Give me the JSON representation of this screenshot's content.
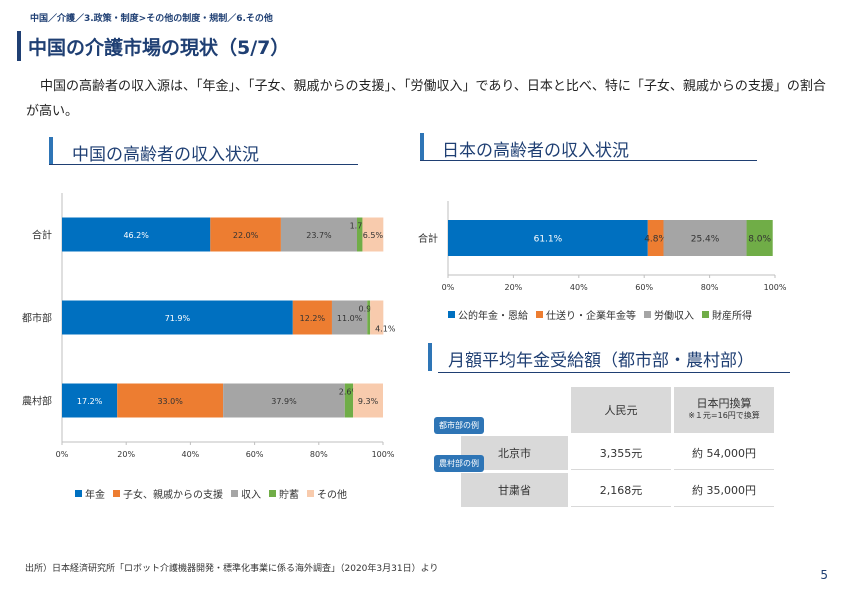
{
  "breadcrumb": "中国／介護／3.政策・制度>その他の制度・規制／6.その他",
  "page_title": "中国の介護市場の現状（5/7）",
  "lead_text": "中国の高齢者の収入源は、「年金」、「子女、親戚からの支援」、「労働収入」であり、日本と比べ、特に「子女、親戚からの支援」の割合が高い。",
  "china_section_title": "中国の高齢者の収入状況",
  "japan_section_title": "日本の高齢者の収入状況",
  "pension_section_title": "月額平均年金受給額（都市部・農村部）",
  "chart_data": [
    {
      "type": "bar",
      "orientation": "horizontal-stacked",
      "categories": [
        "合計",
        "都市部",
        "農村部"
      ],
      "series": [
        {
          "name": "年金",
          "values": [
            46.2,
            71.9,
            17.2
          ],
          "labels": [
            "46.2%",
            "71.9%",
            "17.2%"
          ]
        },
        {
          "name": "子女、親戚からの支援",
          "values": [
            22.0,
            12.2,
            33.0
          ],
          "labels": [
            "22.0%",
            "12.2%",
            "33.0%"
          ]
        },
        {
          "name": "収入",
          "values": [
            23.7,
            11.0,
            37.9
          ],
          "labels": [
            "23.7%",
            "11.0%",
            "37.9%"
          ]
        },
        {
          "name": "貯蓄",
          "values": [
            1.7,
            0.9,
            2.6
          ],
          "labels": [
            "1.7%",
            "0.9%",
            "2.6%"
          ]
        },
        {
          "name": "その他",
          "values": [
            6.5,
            4.1,
            9.3
          ],
          "labels": [
            "6.5%",
            "4.1%",
            "9.3%"
          ]
        }
      ],
      "colors": [
        "#0070c0",
        "#ed7d31",
        "#a5a5a5",
        "#70ad47",
        "#f8cbad"
      ],
      "xlim": [
        0,
        100
      ],
      "xticks": [
        "0%",
        "20%",
        "40%",
        "60%",
        "80%",
        "100%"
      ],
      "legend": "bottom",
      "grid": false
    },
    {
      "type": "bar",
      "orientation": "horizontal-stacked",
      "categories": [
        "合計"
      ],
      "series": [
        {
          "name": "公的年金・恩給",
          "values": [
            61.1
          ],
          "labels": [
            "61.1%"
          ]
        },
        {
          "name": "仕送り・企業年金等",
          "values": [
            4.8
          ],
          "labels": [
            "4.8%"
          ]
        },
        {
          "name": "労働収入",
          "values": [
            25.4
          ],
          "labels": [
            "25.4%"
          ]
        },
        {
          "name": "財産所得",
          "values": [
            8.0
          ],
          "labels": [
            "8.0%"
          ]
        }
      ],
      "colors": [
        "#0070c0",
        "#ed7d31",
        "#a5a5a5",
        "#70ad47"
      ],
      "xlim": [
        0,
        100
      ],
      "xticks": [
        "0%",
        "20%",
        "40%",
        "60%",
        "80%",
        "100%"
      ],
      "legend": "bottom",
      "grid": false
    }
  ],
  "pension_table": {
    "header_rmb": "人民元",
    "header_jpy": "日本円換算",
    "header_jpy_note": "※１元=16円で換算",
    "tag_urban": "都市部の例",
    "tag_rural": "農村部の例",
    "rows": [
      {
        "city": "北京市",
        "rmb": "3,355元",
        "jpy": "約 54,000円"
      },
      {
        "city": "甘粛省",
        "rmb": "2,168元",
        "jpy": "約 35,000円"
      }
    ]
  },
  "source": "出所）日本経済研究所「ロボット介護機器開発・標準化事業に係る海外調査」（2020年3月31日）より",
  "page_number": "5"
}
